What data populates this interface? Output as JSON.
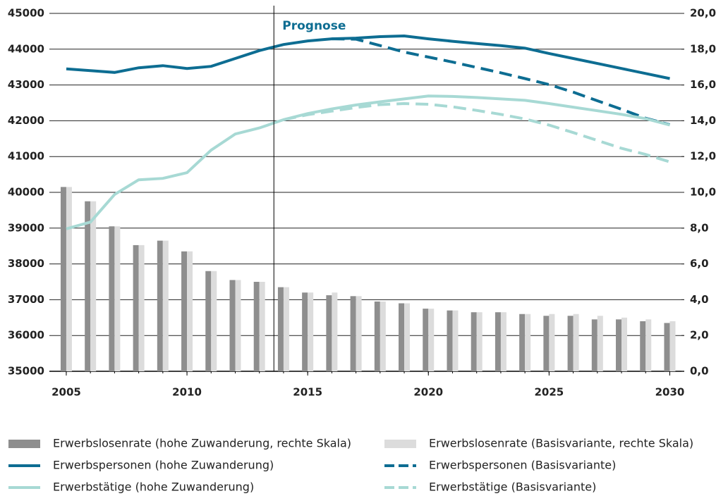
{
  "chart_data": {
    "type": "combo",
    "x": [
      2005,
      2006,
      2007,
      2008,
      2009,
      2010,
      2011,
      2012,
      2013,
      2014,
      2015,
      2016,
      2017,
      2018,
      2019,
      2020,
      2021,
      2022,
      2023,
      2024,
      2025,
      2026,
      2027,
      2028,
      2029,
      2030
    ],
    "xlim": [
      2004.3,
      2030.6
    ],
    "xticks": [
      2005,
      2010,
      2015,
      2020,
      2025,
      2030
    ],
    "ylim": [
      35000,
      45000
    ],
    "yticks": [
      35000,
      36000,
      37000,
      38000,
      39000,
      40000,
      41000,
      42000,
      43000,
      44000,
      45000
    ],
    "y2lim": [
      0,
      20
    ],
    "y2ticks": [
      {
        "value": 0,
        "label": "0,0"
      },
      {
        "value": 2,
        "label": "2,0"
      },
      {
        "value": 4,
        "label": "4,0"
      },
      {
        "value": 6,
        "label": "6,0"
      },
      {
        "value": 8,
        "label": "8,0"
      },
      {
        "value": 10,
        "label": "10,0"
      },
      {
        "value": 12,
        "label": "12,0"
      },
      {
        "value": 14,
        "label": "14,0"
      },
      {
        "value": 16,
        "label": "16,0"
      },
      {
        "value": 18,
        "label": "18,0"
      },
      {
        "value": 20,
        "label": "20,0"
      }
    ],
    "grid": true,
    "annotation": {
      "text": "Prognose",
      "x": 2013.6
    },
    "series": [
      {
        "name": "Erwerbslosenrate (hohe Zuwanderung, rechte Skala)",
        "type": "bar",
        "axis": "y2",
        "color": "#8e8e8e",
        "values": [
          10.3,
          9.5,
          8.1,
          7.05,
          7.3,
          6.7,
          5.6,
          5.1,
          5.0,
          4.7,
          4.4,
          4.25,
          4.2,
          3.9,
          3.8,
          3.5,
          3.4,
          3.3,
          3.3,
          3.2,
          3.1,
          3.1,
          2.9,
          2.9,
          2.8,
          2.7
        ]
      },
      {
        "name": "Erwerbslosenrate (Basisvariante, rechte Skala)",
        "type": "bar",
        "axis": "y2",
        "color": "#dcdcdc",
        "values": [
          10.3,
          9.5,
          8.1,
          7.05,
          7.3,
          6.7,
          5.6,
          5.1,
          5.0,
          4.7,
          4.4,
          4.4,
          4.2,
          3.9,
          3.8,
          3.5,
          3.4,
          3.3,
          3.3,
          3.2,
          3.2,
          3.2,
          3.1,
          3.0,
          2.9,
          2.8
        ]
      },
      {
        "name": "Erwerbspersonen (hohe Zuwanderung)",
        "type": "line",
        "dashed": false,
        "color": "#0d6d92",
        "values": [
          43450,
          43400,
          43350,
          43480,
          43540,
          43460,
          43520,
          43740,
          43960,
          44130,
          44230,
          44290,
          44310,
          44350,
          44370,
          44290,
          44220,
          44160,
          44100,
          44030,
          43880,
          43740,
          43600,
          43460,
          43320,
          43180
        ]
      },
      {
        "name": "Erwerbspersonen (Basisvariante)",
        "type": "line",
        "dashed": true,
        "color": "#0d6d92",
        "values": [
          null,
          null,
          null,
          null,
          null,
          null,
          null,
          null,
          null,
          null,
          null,
          44290,
          44280,
          44100,
          43920,
          43780,
          43640,
          43490,
          43340,
          43180,
          43010,
          42800,
          42560,
          42320,
          42070,
          41890
        ]
      },
      {
        "name": "Erwerbstätige (hohe Zuwanderung)",
        "type": "line",
        "dashed": false,
        "color": "#a7d9d4",
        "values": [
          38980,
          39170,
          39940,
          40350,
          40390,
          40550,
          41180,
          41630,
          41800,
          42030,
          42200,
          42330,
          42440,
          42530,
          42610,
          42690,
          42680,
          42650,
          42610,
          42570,
          42480,
          42380,
          42280,
          42180,
          42060,
          41880
        ]
      },
      {
        "name": "Erwerbstätige (Basisvariante)",
        "type": "line",
        "dashed": true,
        "color": "#a7d9d4",
        "values": [
          null,
          null,
          null,
          null,
          null,
          null,
          null,
          null,
          null,
          42030,
          42170,
          42270,
          42370,
          42450,
          42480,
          42460,
          42390,
          42290,
          42180,
          42050,
          41880,
          41670,
          41450,
          41230,
          41060,
          40850
        ]
      }
    ]
  }
}
